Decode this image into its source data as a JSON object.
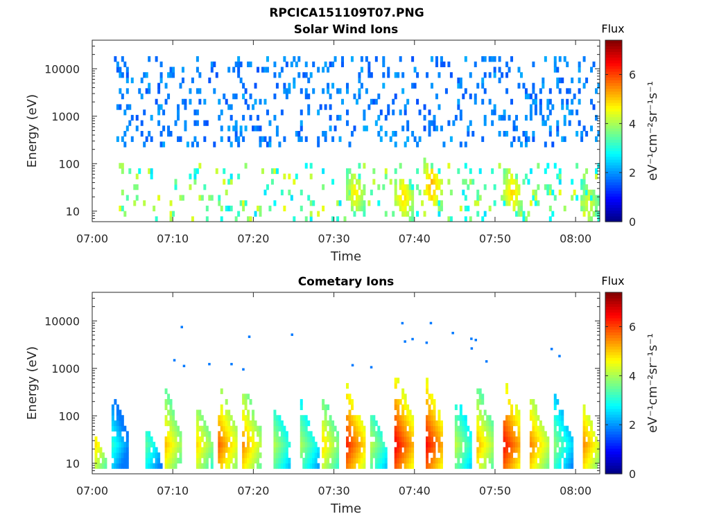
{
  "figure_title": "RPCICA151109T07.PNG",
  "chart_data": [
    {
      "type": "heatmap",
      "title": "Solar Wind Ions",
      "xlabel": "Time",
      "ylabel": "Energy (eV)",
      "yscale": "log",
      "x_ticks": [
        "07:00",
        "07:10",
        "07:20",
        "07:30",
        "07:40",
        "07:50",
        "08:00"
      ],
      "x_tick_minutes": [
        0,
        10,
        20,
        30,
        40,
        50,
        60
      ],
      "x_range_minutes": [
        0,
        63
      ],
      "y_ticks": [
        "10",
        "100",
        "1000",
        "10000"
      ],
      "y_tick_values": [
        10,
        100,
        1000,
        10000
      ],
      "ylim": [
        6,
        40000
      ],
      "colorbar": {
        "title": "Flux",
        "label": "eV⁻¹cm⁻²sr⁻¹s⁻¹",
        "ticks": [
          "0",
          "2",
          "4",
          "6"
        ],
        "tick_values": [
          0,
          2,
          4,
          6
        ],
        "range": [
          0,
          7.4
        ],
        "colormap": "jet"
      },
      "data_summary": {
        "data_start_minute": 2.5,
        "background": {
          "energy_range_eV": [
            200,
            15000
          ],
          "typical_flux": [
            1.5,
            2.2
          ],
          "note": "sparse scattered blue pixels"
        },
        "low_energy_pixels": {
          "energy_range_eV": [
            8,
            80
          ],
          "typical_flux": [
            2.5,
            4.5
          ]
        },
        "bursts": [
          {
            "time_minute": 32.5,
            "energy_eV": 25,
            "peak_flux": 4.8
          },
          {
            "time_minute": 38.5,
            "energy_eV": 20,
            "peak_flux": 5.0
          },
          {
            "time_minute": 42,
            "energy_eV": 35,
            "peak_flux": 5.3
          },
          {
            "time_minute": 52,
            "energy_eV": 25,
            "peak_flux": 5.0
          },
          {
            "time_minute": 61.5,
            "energy_eV": 15,
            "peak_flux": 4.5
          }
        ]
      }
    },
    {
      "type": "heatmap",
      "title": "Cometary Ions",
      "xlabel": "Time",
      "ylabel": "Energy (eV)",
      "yscale": "log",
      "x_ticks": [
        "07:00",
        "07:10",
        "07:20",
        "07:30",
        "07:40",
        "07:50",
        "08:00"
      ],
      "x_tick_minutes": [
        0,
        10,
        20,
        30,
        40,
        50,
        60
      ],
      "x_range_minutes": [
        0,
        63
      ],
      "y_ticks": [
        "10",
        "100",
        "1000",
        "10000"
      ],
      "y_tick_values": [
        10,
        100,
        1000,
        10000
      ],
      "ylim": [
        6,
        40000
      ],
      "colorbar": {
        "title": "Flux",
        "label": "eV⁻¹cm⁻²sr⁻¹s⁻¹",
        "ticks": [
          "0",
          "2",
          "4",
          "6"
        ],
        "tick_values": [
          0,
          2,
          4,
          6
        ],
        "range": [
          0,
          7.4
        ],
        "colormap": "jet"
      },
      "data_summary": {
        "note": "recurring dispersive ion bursts: energy decreases with time within each burst",
        "bursts": [
          {
            "start_minute": 0.3,
            "peak_flux": 4.8,
            "max_energy_eV": 40
          },
          {
            "start_minute": 2.2,
            "peak_flux": 3.2,
            "max_energy_eV": 400
          },
          {
            "start_minute": 6.5,
            "peak_flux": 3.5,
            "max_energy_eV": 80
          },
          {
            "start_minute": 8.8,
            "peak_flux": 5.2,
            "max_energy_eV": 500
          },
          {
            "start_minute": 12.7,
            "peak_flux": 5.0,
            "max_energy_eV": 250
          },
          {
            "start_minute": 15.5,
            "peak_flux": 5.8,
            "max_energy_eV": 600
          },
          {
            "start_minute": 18.5,
            "peak_flux": 5.5,
            "max_energy_eV": 600
          },
          {
            "start_minute": 22.3,
            "peak_flux": 4.2,
            "max_energy_eV": 250
          },
          {
            "start_minute": 25.8,
            "peak_flux": 4.0,
            "max_energy_eV": 200
          },
          {
            "start_minute": 28.3,
            "peak_flux": 5.0,
            "max_energy_eV": 350
          },
          {
            "start_minute": 31.5,
            "peak_flux": 6.2,
            "max_energy_eV": 500
          },
          {
            "start_minute": 34.2,
            "peak_flux": 4.3,
            "max_energy_eV": 200
          },
          {
            "start_minute": 37.5,
            "peak_flux": 6.5,
            "max_energy_eV": 900
          },
          {
            "start_minute": 41.2,
            "peak_flux": 6.5,
            "max_energy_eV": 700
          },
          {
            "start_minute": 44.8,
            "peak_flux": 4.3,
            "max_energy_eV": 400
          },
          {
            "start_minute": 47.5,
            "peak_flux": 5.3,
            "max_energy_eV": 600
          },
          {
            "start_minute": 50.8,
            "peak_flux": 6.5,
            "max_energy_eV": 1000
          },
          {
            "start_minute": 54.3,
            "peak_flux": 5.5,
            "max_energy_eV": 300
          },
          {
            "start_minute": 57.3,
            "peak_flux": 3.8,
            "max_energy_eV": 300
          },
          {
            "start_minute": 60.8,
            "peak_flux": 5.5,
            "max_energy_eV": 200
          }
        ]
      }
    }
  ]
}
